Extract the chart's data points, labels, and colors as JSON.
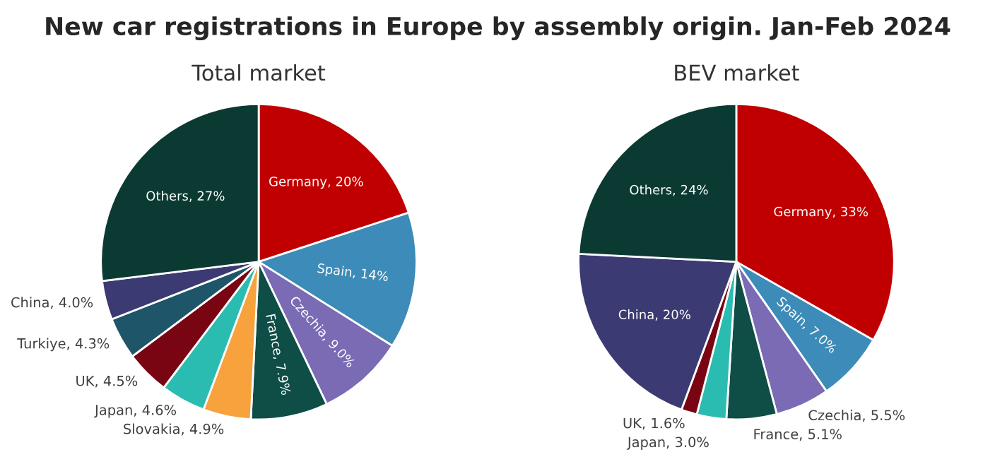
{
  "chart_data": [
    {
      "type": "pie",
      "title": "New car registrations in Europe by assembly origin. Jan-Feb 2024",
      "subtitle": "Total market",
      "categories": [
        "Germany",
        "Spain",
        "Czechia",
        "France",
        "Slovakia",
        "Japan",
        "UK",
        "Turkiye",
        "China",
        "Others"
      ],
      "values": [
        20,
        14,
        9.0,
        7.9,
        4.9,
        4.6,
        4.5,
        4.3,
        4.0,
        27
      ],
      "value_labels": [
        "20%",
        "14%",
        "9.0%",
        "7.9%",
        "4.9%",
        "4.6%",
        "4.5%",
        "4.3%",
        "4.0%",
        "27%"
      ],
      "colors": [
        "#c00000",
        "#3d8bb8",
        "#7a6bb4",
        "#0f4d47",
        "#f7a23c",
        "#2bbcb1",
        "#7a0512",
        "#1f5569",
        "#3c3a72",
        "#0b3a33"
      ]
    },
    {
      "type": "pie",
      "subtitle": "BEV market",
      "categories": [
        "Germany",
        "Spain",
        "Czechia",
        "France",
        "Japan",
        "UK",
        "China",
        "Others"
      ],
      "values": [
        33,
        7.0,
        5.5,
        5.1,
        3.0,
        1.6,
        20,
        24
      ],
      "value_labels": [
        "33%",
        "7.0%",
        "5.5%",
        "5.1%",
        "3.0%",
        "1.6%",
        "20%",
        "24%"
      ],
      "colors": [
        "#c00000",
        "#3d8bb8",
        "#7a6bb4",
        "#0f4d47",
        "#2bbcb1",
        "#7a0512",
        "#3c3a72",
        "#0b3a33"
      ]
    }
  ]
}
